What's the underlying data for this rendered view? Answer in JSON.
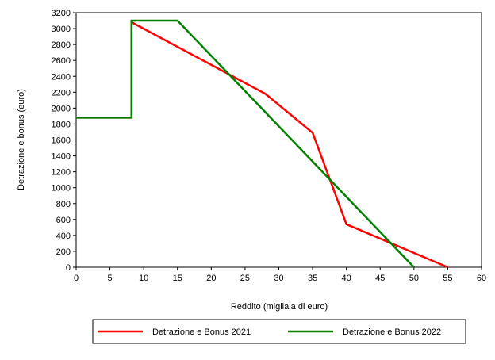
{
  "chart_data": {
    "type": "line",
    "xlabel": "Reddito (migliaia di euro)",
    "ylabel": "Detrazione e bonus (euro)",
    "xlim": [
      0,
      60
    ],
    "ylim": [
      0,
      3200
    ],
    "xticks": [
      0,
      5,
      10,
      15,
      20,
      25,
      30,
      35,
      40,
      45,
      50,
      55,
      60
    ],
    "yticks": [
      0,
      200,
      400,
      600,
      800,
      1000,
      1200,
      1400,
      1600,
      1800,
      2000,
      2200,
      2400,
      2600,
      2800,
      3000,
      3200
    ],
    "grid": false,
    "legend_position": "bottom",
    "series": [
      {
        "name": "Detrazione e Bonus 2021",
        "color": "#ff0000",
        "points": [
          [
            0,
            1880
          ],
          [
            8.2,
            1880
          ],
          [
            8.2,
            3080
          ],
          [
            28,
            2180
          ],
          [
            35,
            1690
          ],
          [
            40,
            540
          ],
          [
            55,
            0
          ]
        ]
      },
      {
        "name": "Detrazione e Bonus 2022",
        "color": "#008000",
        "points": [
          [
            0,
            1880
          ],
          [
            8.2,
            1880
          ],
          [
            8.2,
            3100
          ],
          [
            15,
            3100
          ],
          [
            50,
            0
          ]
        ]
      }
    ]
  }
}
